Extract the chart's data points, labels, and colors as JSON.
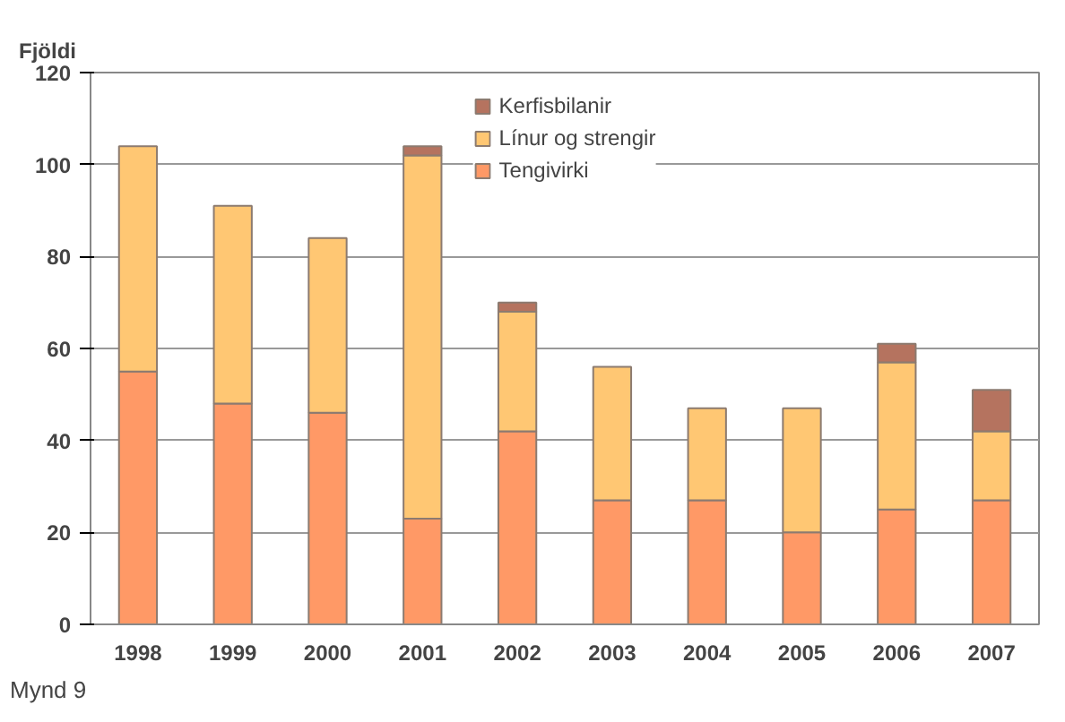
{
  "chart_data": {
    "type": "bar",
    "stacked": true,
    "ylabel": "Fjöldi",
    "categories": [
      "1998",
      "1999",
      "2000",
      "2001",
      "2002",
      "2003",
      "2004",
      "2005",
      "2006",
      "2007"
    ],
    "series": [
      {
        "name": "Tengivirki",
        "color": "#ff9966",
        "values": [
          55,
          48,
          46,
          23,
          42,
          27,
          27,
          20,
          25,
          27
        ]
      },
      {
        "name": "Línur og strengir",
        "color": "#ffc773",
        "values": [
          49,
          43,
          38,
          79,
          26,
          29,
          20,
          27,
          32,
          15
        ]
      },
      {
        "name": "Kerfisbilanir",
        "color": "#b5735f",
        "values": [
          0,
          0,
          0,
          2,
          2,
          0,
          0,
          0,
          4,
          9
        ]
      }
    ],
    "ylim": [
      0,
      120
    ],
    "yticks": [
      0,
      20,
      40,
      60,
      80,
      100,
      120
    ],
    "grid": "y",
    "legend": "top",
    "annotations": [
      "Mynd 9"
    ]
  }
}
